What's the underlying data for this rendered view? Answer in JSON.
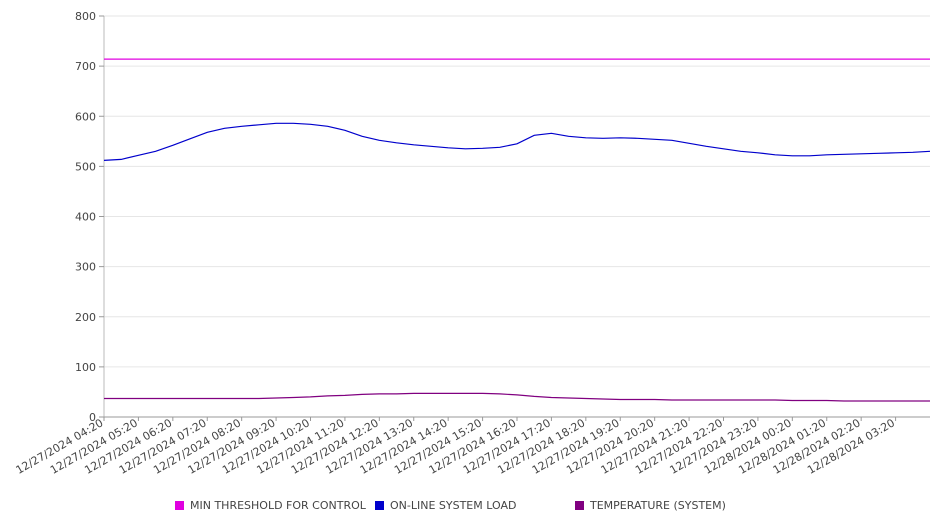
{
  "chart_data": {
    "type": "line",
    "title": "",
    "xlabel": "",
    "ylabel": "",
    "ylim": [
      0,
      800
    ],
    "yticks": [
      0,
      100,
      200,
      300,
      400,
      500,
      600,
      700,
      800
    ],
    "grid": true,
    "legend_position": "bottom",
    "x_start": "12/27/2024 04:20",
    "x_end": "12/28/2024 04:20",
    "x_tick_labels": [
      "12/27/2024 04:20",
      "12/27/2024 05:20",
      "12/27/2024 06:20",
      "12/27/2024 07:20",
      "12/27/2024 08:20",
      "12/27/2024 09:20",
      "12/27/2024 10:20",
      "12/27/2024 11:20",
      "12/27/2024 12:20",
      "12/27/2024 13:20",
      "12/27/2024 14:20",
      "12/27/2024 15:20",
      "12/27/2024 16:20",
      "12/27/2024 17:20",
      "12/27/2024 18:20",
      "12/27/2024 19:20",
      "12/27/2024 20:20",
      "12/27/2024 21:20",
      "12/27/2024 22:20",
      "12/27/2024 23:20",
      "12/28/2024 00:20",
      "12/28/2024 01:20",
      "12/28/2024 02:20",
      "12/28/2024 03:20"
    ],
    "x_hours": [
      0,
      0.5,
      1,
      1.5,
      2,
      2.5,
      3,
      3.5,
      4,
      4.5,
      5,
      5.5,
      6,
      6.5,
      7,
      7.5,
      8,
      8.5,
      9,
      9.5,
      10,
      10.5,
      11,
      11.5,
      12,
      12.5,
      13,
      13.5,
      14,
      14.5,
      15,
      15.5,
      16,
      16.5,
      17,
      17.5,
      18,
      18.5,
      19,
      19.5,
      20,
      20.5,
      21,
      21.5,
      22,
      22.5,
      23,
      23.5,
      24
    ],
    "series": [
      {
        "name": "MIN THRESHOLD FOR CONTROL",
        "color": "#e000e0",
        "values": [
          714,
          714,
          714,
          714,
          714,
          714,
          714,
          714,
          714,
          714,
          714,
          714,
          714,
          714,
          714,
          714,
          714,
          714,
          714,
          714,
          714,
          714,
          714,
          714,
          714,
          714,
          714,
          714,
          714,
          714,
          714,
          714,
          714,
          714,
          714,
          714,
          714,
          714,
          714,
          714,
          714,
          714,
          714,
          714,
          714,
          714,
          714,
          714,
          714
        ]
      },
      {
        "name": "ON-LINE SYSTEM LOAD",
        "color": "#0000cc",
        "values": [
          512,
          514,
          522,
          530,
          542,
          555,
          568,
          576,
          580,
          583,
          586,
          586,
          584,
          580,
          572,
          560,
          552,
          547,
          543,
          540,
          537,
          535,
          536,
          538,
          545,
          562,
          566,
          560,
          557,
          556,
          557,
          556,
          554,
          552,
          546,
          540,
          535,
          530,
          527,
          523,
          521,
          521,
          523,
          524,
          525,
          526,
          527,
          528,
          530
        ]
      },
      {
        "name": "TEMPERATURE (SYSTEM)",
        "color": "#800080",
        "values": [
          37,
          37,
          37,
          37,
          37,
          37,
          37,
          37,
          37,
          37,
          38,
          39,
          40,
          42,
          43,
          45,
          46,
          46,
          47,
          47,
          47,
          47,
          47,
          46,
          44,
          41,
          39,
          38,
          37,
          36,
          35,
          35,
          35,
          34,
          34,
          34,
          34,
          34,
          34,
          34,
          33,
          33,
          33,
          32,
          32,
          32,
          32,
          32,
          32
        ]
      }
    ]
  }
}
